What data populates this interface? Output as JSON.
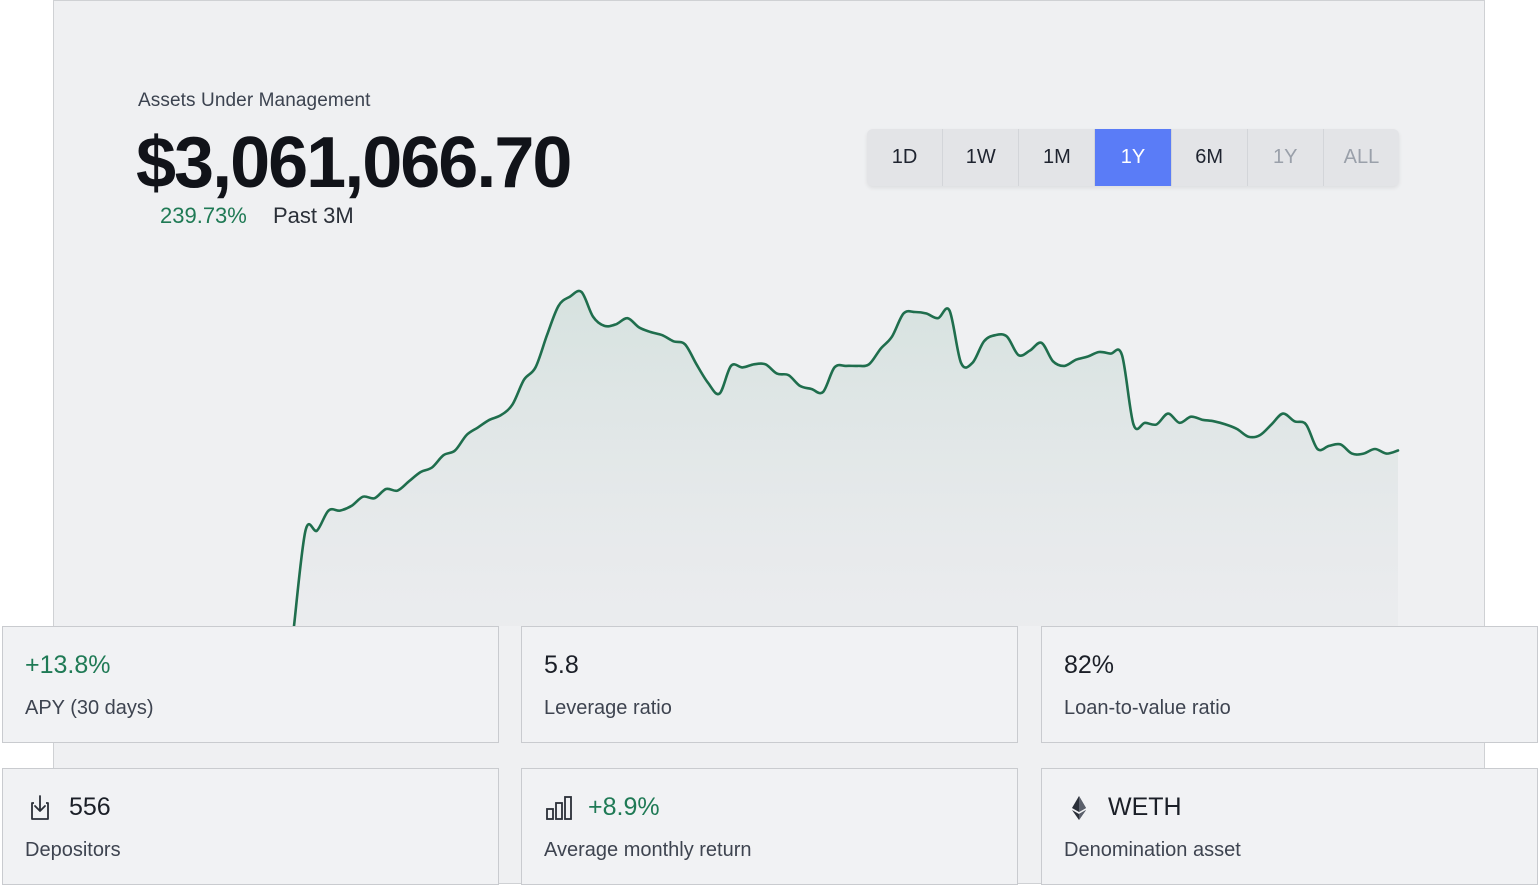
{
  "header": {
    "label": "Assets Under Management",
    "value": "$3,061,066.70",
    "change": "239.73%",
    "period": "Past 3M"
  },
  "range_tabs": [
    {
      "label": "1D",
      "state": "normal"
    },
    {
      "label": "1W",
      "state": "normal"
    },
    {
      "label": "1M",
      "state": "normal"
    },
    {
      "label": "1Y",
      "state": "active"
    },
    {
      "label": "6M",
      "state": "normal"
    },
    {
      "label": "1Y",
      "state": "muted"
    },
    {
      "label": "ALL",
      "state": "muted"
    }
  ],
  "chart_data": {
    "type": "area",
    "title": "",
    "xlabel": "",
    "ylabel": "",
    "grid": false,
    "color": "#1f6e4d",
    "values": [
      0,
      62,
      62,
      75,
      75,
      78,
      84,
      83,
      89,
      88,
      94,
      100,
      103,
      111,
      114,
      124,
      129,
      134,
      137,
      144,
      160,
      168,
      189,
      208,
      214,
      217,
      201,
      195,
      196,
      200,
      194,
      191,
      189,
      185,
      183,
      170,
      158,
      151,
      169,
      168,
      170,
      170,
      164,
      163,
      156,
      154,
      152,
      168,
      169,
      169,
      170,
      180,
      188,
      203,
      204,
      203,
      200,
      205,
      171,
      171,
      185,
      189,
      188,
      176,
      179,
      184,
      172,
      169,
      173,
      175,
      178,
      177,
      176,
      131,
      132,
      131,
      138,
      132,
      136,
      134,
      133,
      131,
      128,
      123,
      124,
      131,
      138,
      133,
      131,
      115,
      117,
      118,
      112,
      112,
      115,
      112,
      114
    ]
  },
  "stats": [
    {
      "value": "+13.8%",
      "label": "APY (30 days)",
      "green": true,
      "icon": ""
    },
    {
      "value": "5.8",
      "label": "Leverage ratio",
      "green": false,
      "icon": ""
    },
    {
      "value": "82%",
      "label": "Loan-to-value ratio",
      "green": false,
      "icon": ""
    },
    {
      "value": "556",
      "label": "Depositors",
      "green": false,
      "icon": "download-icon"
    },
    {
      "value": "+8.9%",
      "label": "Average monthly return",
      "green": true,
      "icon": "bar-chart-icon"
    },
    {
      "value": "WETH",
      "label": "Denomination asset",
      "green": false,
      "icon": "ethereum-icon"
    }
  ]
}
